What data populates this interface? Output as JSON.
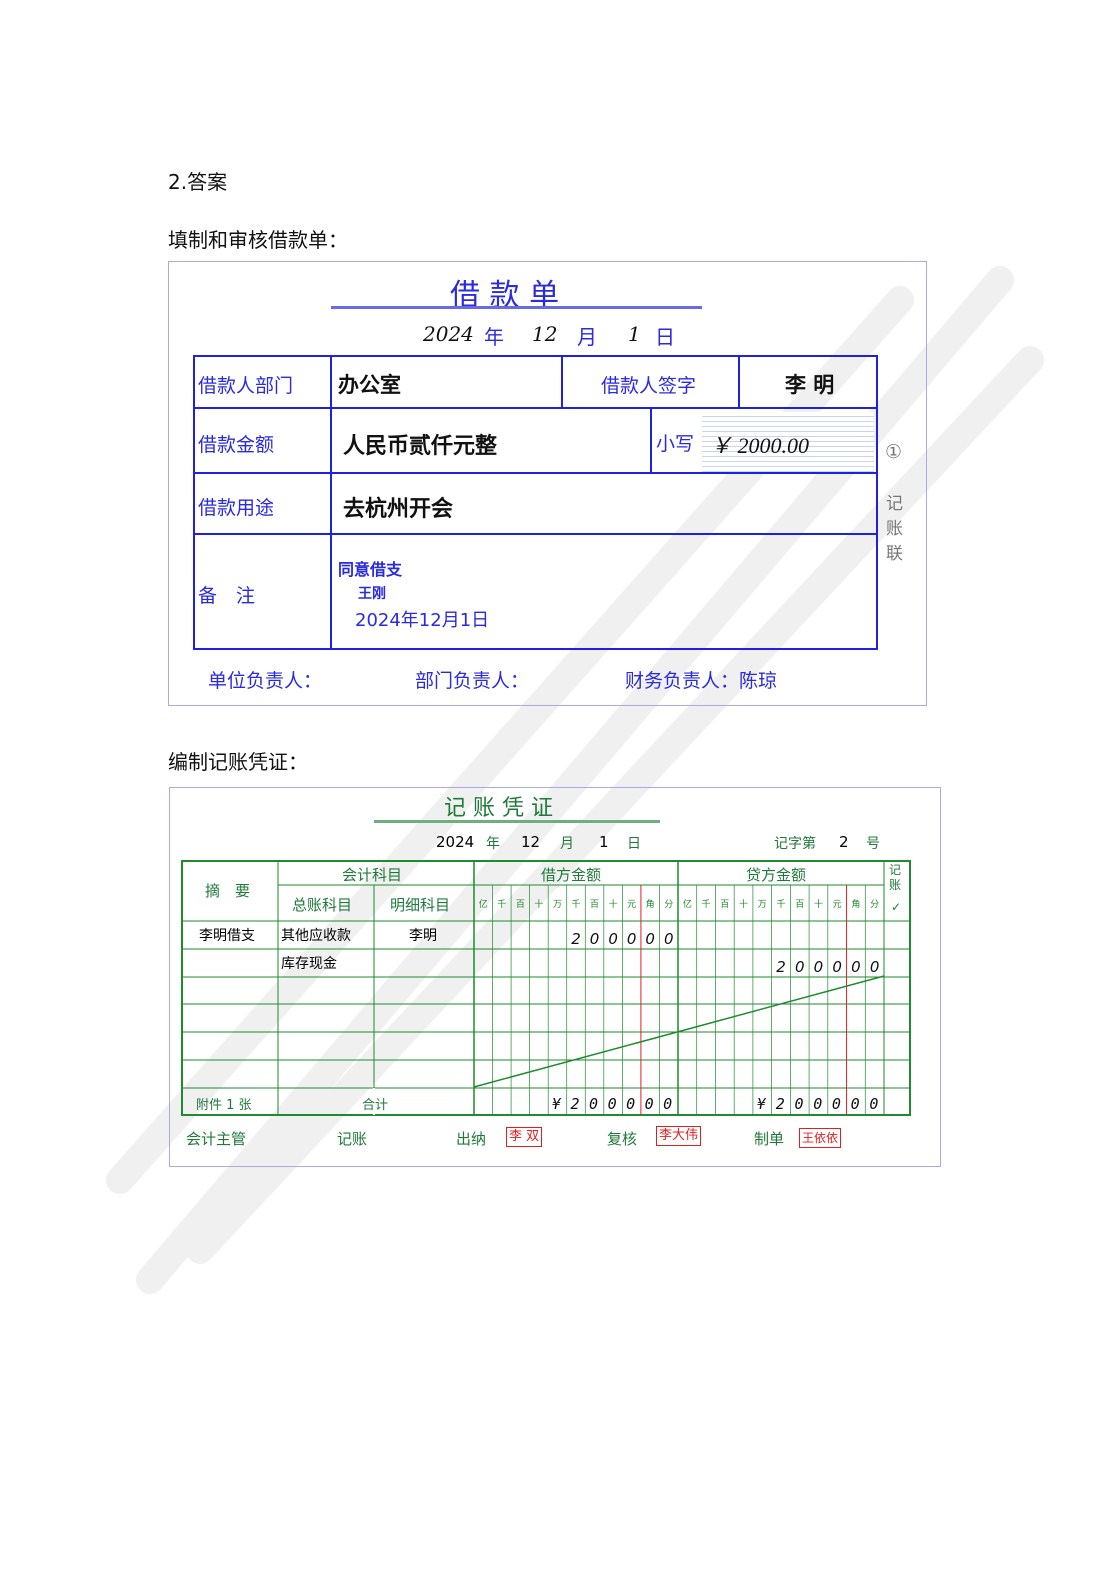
{
  "section_title": "2.答案",
  "loan_caption": "填制和审核借款单：",
  "loan_form": {
    "title": "借 款 单",
    "date": {
      "year": "2024",
      "year_label": "年",
      "month": "12",
      "month_label": "月",
      "day": "1",
      "day_label": "日"
    },
    "dept_label": "借款人部门",
    "dept_value": "办公室",
    "signer_label": "借款人签字",
    "signer_value": "李 明",
    "amount_label": "借款金额",
    "amount_words": "人民币贰仟元整",
    "small_label": "小写",
    "amount_number": "￥ 2000.00",
    "purpose_label": "借款用途",
    "purpose_value": "去杭州开会",
    "remark_label": "备　注",
    "remark_lines": [
      "同意借支",
      "王刚",
      "2024年12月1日"
    ],
    "side_number": "①",
    "side_label": "记\n账\n联",
    "footer": [
      "单位负责人：",
      "部门负责人：",
      "财务负责人：陈琼"
    ],
    "colors": {
      "ink": "#2a2ae0",
      "border": "#2020e0"
    }
  },
  "voucher_caption": "编制记账凭证：",
  "voucher": {
    "title": "记 账 凭 证",
    "date": {
      "year": "2024",
      "year_label": "年",
      "month": "12",
      "month_label": "月",
      "day": "1",
      "day_label": "日"
    },
    "number_label_pre": "记字第",
    "number": "2",
    "number_label_post": "号",
    "headers": {
      "summary": "摘　要",
      "account": "会计科目",
      "general": "总账科目",
      "detail": "明细科目",
      "debit": "借方金额",
      "credit": "贷方金额",
      "posted": "记账",
      "check": "✓"
    },
    "digit_units": [
      "亿",
      "千",
      "百",
      "十",
      "万",
      "千",
      "百",
      "十",
      "元",
      "角",
      "分"
    ],
    "rows": [
      {
        "summary": "李明借支",
        "general": "其他应收款",
        "detail": "李明",
        "debit": "200000",
        "credit": ""
      },
      {
        "summary": "",
        "general": "库存现金",
        "detail": "",
        "debit": "",
        "credit": "200000"
      }
    ],
    "total": {
      "attach_label": "附件 1 张",
      "label": "合计",
      "debit": "¥200000",
      "credit": "¥200000"
    },
    "signoffs": [
      {
        "role": "会计主管",
        "name": ""
      },
      {
        "role": "记账",
        "name": ""
      },
      {
        "role": "出纳",
        "name": "李 双"
      },
      {
        "role": "复核",
        "name": "李大伟"
      },
      {
        "role": "制单",
        "name": "王依依"
      }
    ],
    "colors": {
      "grid": "#1f8a2f",
      "divider": "#e02020",
      "stamp": "#e02020"
    }
  }
}
